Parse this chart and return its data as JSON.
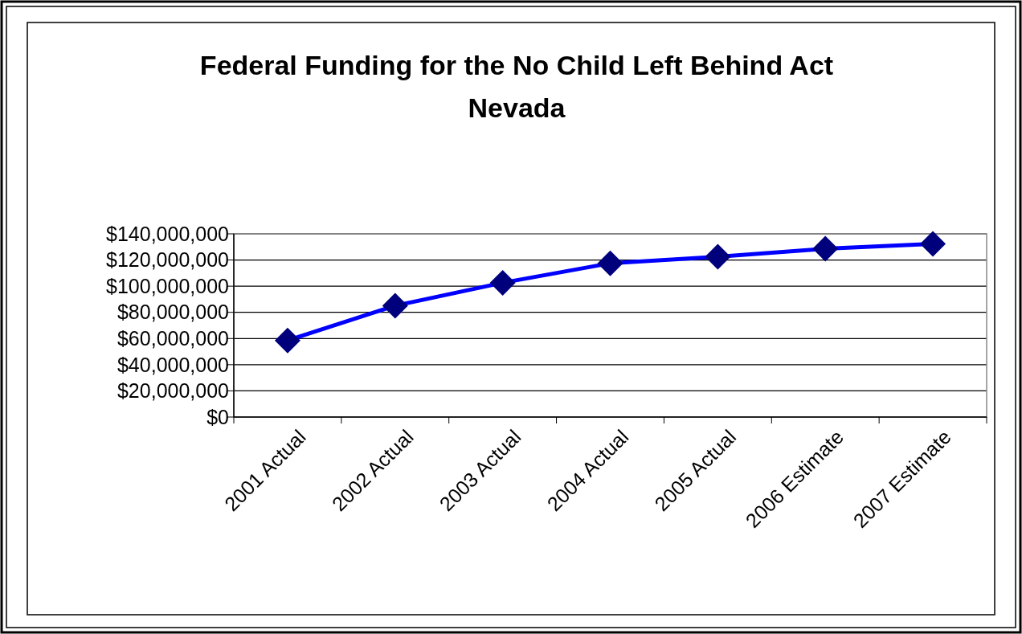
{
  "chart_data": {
    "type": "line",
    "title": "Federal Funding for the No Child Left Behind Act",
    "subtitle": "Nevada",
    "categories": [
      "2001 Actual",
      "2002 Actual",
      "2003 Actual",
      "2004 Actual",
      "2005 Actual",
      "2006 Estimate",
      "2007 Estimate"
    ],
    "series": [
      {
        "color": "#0000ff",
        "values": [
          58500000,
          85100000,
          102600000,
          117500000,
          122500000,
          128600000,
          132300000
        ]
      }
    ],
    "ylim": [
      0,
      140000000
    ],
    "yticks": [
      {
        "value": 0,
        "label": "$0"
      },
      {
        "value": 20000000,
        "label": "$20,000,000"
      },
      {
        "value": 40000000,
        "label": "$40,000,000"
      },
      {
        "value": 60000000,
        "label": "$60,000,000"
      },
      {
        "value": 80000000,
        "label": "$80,000,000"
      },
      {
        "value": 100000000,
        "label": "$100,000,000"
      },
      {
        "value": 120000000,
        "label": "$120,000,000"
      },
      {
        "value": 140000000,
        "label": "$140,000,000"
      }
    ],
    "grid": "y",
    "marker": "diamond",
    "line_style": "solid"
  }
}
